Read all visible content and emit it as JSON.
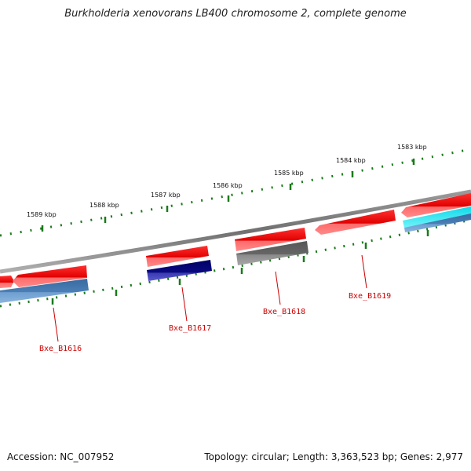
{
  "title": "Burkholderia xenovorans LB400 chromosome 2, complete genome",
  "accession_text": "Accession: NC_007952",
  "summary_text": "Topology: circular; Length: 3,363,523 bp; Genes: 2,977",
  "ruler_ticks": [
    "1589 kbp",
    "1588 kbp",
    "1587 kbp",
    "1586 kbp",
    "1585 kbp",
    "1584 kbp",
    "1583 kbp"
  ],
  "gene_labels": [
    "Bxe_B1616",
    "Bxe_B1617",
    "Bxe_B1618",
    "Bxe_B1619"
  ],
  "colors": {
    "gene_red": "#ee1111",
    "gene_light_red": "#ff7070",
    "steel_blue": "#4a7fb5",
    "navy": "#0a0a80",
    "gray": "#666666",
    "cyan": "#22e8f0",
    "backbone": "#808080",
    "tick_green": "#1a7a1a",
    "label_red": "#cc0000"
  }
}
